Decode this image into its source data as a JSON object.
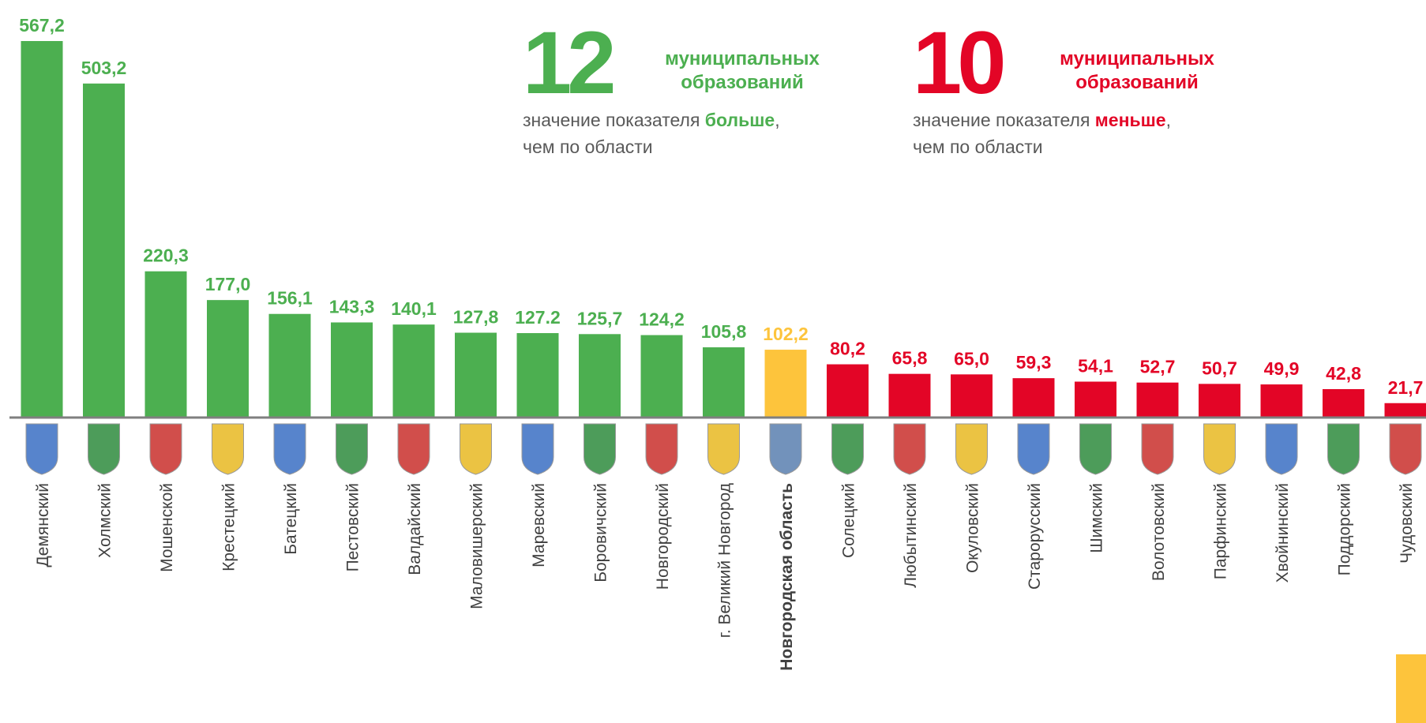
{
  "chart_data": {
    "type": "bar",
    "categories": [
      "Демянский",
      "Холмский",
      "Мошенской",
      "Крестецкий",
      "Батецкий",
      "Пестовский",
      "Валдайский",
      "Маловишерский",
      "Маревский",
      "Боровичский",
      "Новгородский",
      "г. Великий Новгород",
      "Новгородская область",
      "Солецкий",
      "Любытинский",
      "Окуловский",
      "Старорусский",
      "Шимский",
      "Волотовский",
      "Парфинский",
      "Хвойнинский",
      "Поддорский",
      "Чудовский"
    ],
    "values": [
      567.2,
      503.2,
      220.3,
      177.0,
      156.1,
      143.3,
      140.1,
      127.8,
      127.2,
      125.7,
      124.2,
      105.8,
      102.2,
      80.2,
      65.8,
      65.0,
      59.3,
      54.1,
      52.7,
      50.7,
      49.9,
      42.8,
      21.7
    ],
    "value_labels": [
      "567,2",
      "503,2",
      "220,3",
      "177,0",
      "156,1",
      "143,3",
      "140,1",
      "127,8",
      "127.2",
      "125,7",
      "124,2",
      "105,8",
      "102,2",
      "80,2",
      "65,8",
      "65,0",
      "59,3",
      "54,1",
      "52,7",
      "50,7",
      "49,9",
      "42,8",
      "21,7"
    ],
    "colors": [
      "#4caf50",
      "#4caf50",
      "#4caf50",
      "#4caf50",
      "#4caf50",
      "#4caf50",
      "#4caf50",
      "#4caf50",
      "#4caf50",
      "#4caf50",
      "#4caf50",
      "#4caf50",
      "#fdc43c",
      "#e30526",
      "#e30526",
      "#e30526",
      "#e30526",
      "#e30526",
      "#e30526",
      "#e30526",
      "#e30526",
      "#e30526",
      "#e30526"
    ],
    "highlight_category": 12,
    "annotations": [
      {
        "number": 12,
        "label": [
          "муниципальных",
          "образований"
        ],
        "text": [
          "значение показателя ",
          "больше",
          ",",
          "чем по области"
        ],
        "color": "#4caf50"
      },
      {
        "number": 10,
        "label": [
          "муниципальных",
          "образований"
        ],
        "text": [
          "значение показателя ",
          "меньше",
          ",",
          "чем по области"
        ],
        "color": "#e30526"
      }
    ]
  }
}
